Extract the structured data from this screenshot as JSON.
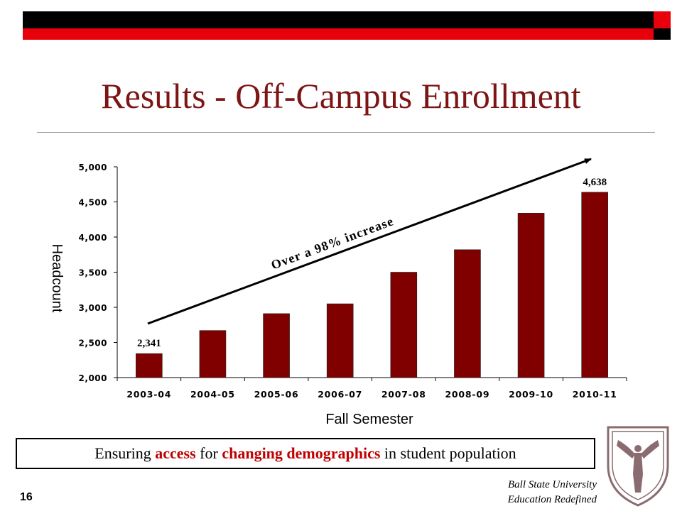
{
  "title": "Results - Off-Campus Enrollment",
  "tagline": {
    "part1": "Ensuring ",
    "highlight1": "access",
    "part2": " for ",
    "highlight2": "changing demographics",
    "part3": " in student population"
  },
  "page_number": "16",
  "branding": {
    "line1": "Ball State University",
    "line2": "Education Redefined"
  },
  "colors": {
    "title": "#7d1515",
    "bar": "#800000",
    "accent_red": "#e8000b",
    "highlight": "#c00000"
  },
  "chart_data": {
    "type": "bar",
    "title": "",
    "xlabel": "Fall Semester",
    "ylabel": "Headcount",
    "categories": [
      "2003-04",
      "2004-05",
      "2005-06",
      "2006-07",
      "2007-08",
      "2008-09",
      "2009-10",
      "2010-11"
    ],
    "values": [
      2341,
      2670,
      2910,
      3050,
      3500,
      3820,
      4340,
      4638
    ],
    "data_labels": [
      {
        "index": 0,
        "text": "2,341"
      },
      {
        "index": 7,
        "text": "4,638"
      }
    ],
    "ylim": [
      2000,
      5000
    ],
    "yticks": [
      {
        "value": 2000,
        "label": "2,000"
      },
      {
        "value": 2500,
        "label": "2,500"
      },
      {
        "value": 3000,
        "label": "3,000"
      },
      {
        "value": 3500,
        "label": "3,500"
      },
      {
        "value": 4000,
        "label": "4,000"
      },
      {
        "value": 4500,
        "label": "4,500"
      },
      {
        "value": 5000,
        "label": "5,000"
      }
    ],
    "annotation": "Over a 98% increase",
    "grid": false,
    "legend": "none"
  }
}
